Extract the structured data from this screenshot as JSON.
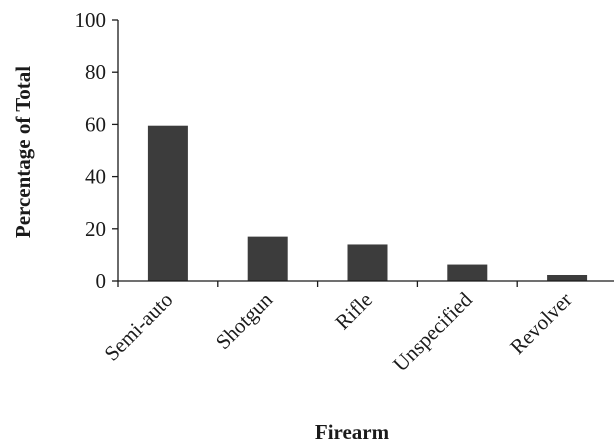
{
  "chart_data": {
    "type": "bar",
    "categories": [
      "Semi-auto",
      "Shotgun",
      "Rifle",
      "Unspecified",
      "Revolver"
    ],
    "values": [
      59.5,
      17,
      14,
      6.3,
      2.3
    ],
    "xlabel": "Firearm",
    "ylabel": "Percentage of Total",
    "ylim": [
      0,
      100
    ],
    "yticks": [
      0,
      20,
      40,
      60,
      80,
      100
    ],
    "grid": false,
    "legend": "none",
    "bar_color": "#3c3c3c"
  }
}
